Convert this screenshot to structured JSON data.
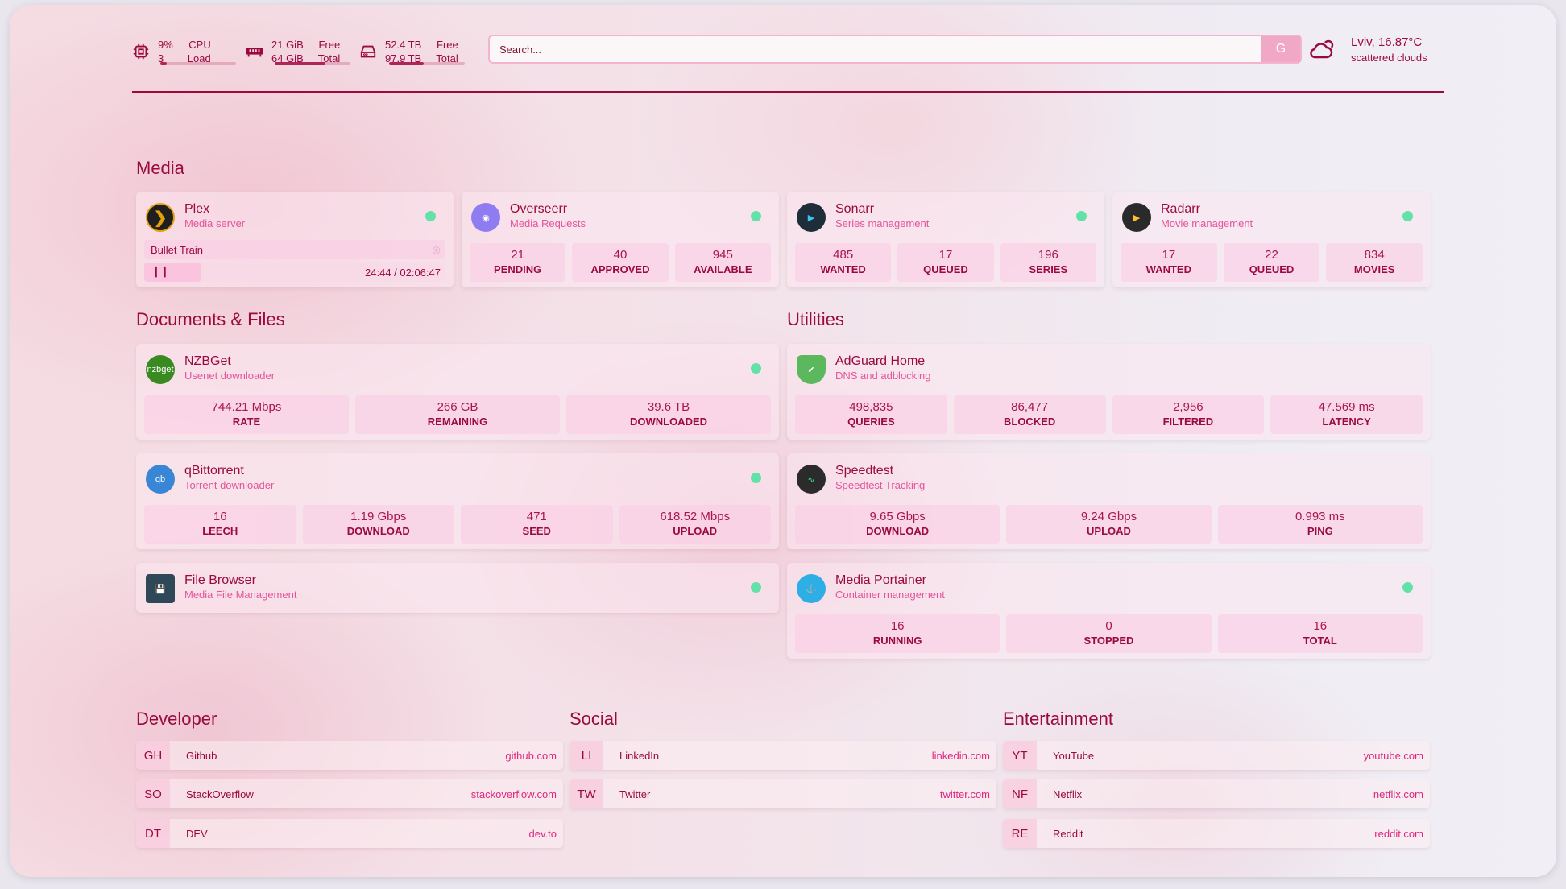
{
  "header": {
    "cpu": {
      "icon": "cpu-icon",
      "value": "9%",
      "value2": "3",
      "label": "CPU",
      "label2": "Load",
      "percent": 9
    },
    "memory": {
      "icon": "memory-icon",
      "value": "21 GiB",
      "value2": "64 GiB",
      "label": "Free",
      "label2": "Total",
      "percent": 67
    },
    "disk": {
      "icon": "disk-icon",
      "value": "52.4 TB",
      "value2": "97.9 TB",
      "label": "Free",
      "label2": "Total",
      "percent": 46
    },
    "search": {
      "placeholder": "Search...",
      "button": "G"
    },
    "weather": {
      "icon": "cloud-icon",
      "temp": "Lviv, 16.87°C",
      "desc": "scattered clouds"
    }
  },
  "groups": {
    "media": "Media",
    "docs": "Documents & Files",
    "utilities": "Utilities",
    "developer": "Developer",
    "social": "Social",
    "entertainment": "Entertainment"
  },
  "plex": {
    "name": "Plex",
    "desc": "Media server",
    "title": "Bullet Train",
    "time": "24:44 / 02:06:47",
    "progress": 19
  },
  "services": [
    {
      "id": "overseerr",
      "name": "Overseerr",
      "desc": "Media Requests",
      "icon": "overseerr-icon",
      "color": "#8f7cf0",
      "status": true,
      "stats": [
        [
          "21",
          "PENDING"
        ],
        [
          "40",
          "APPROVED"
        ],
        [
          "945",
          "AVAILABLE"
        ]
      ]
    },
    {
      "id": "sonarr",
      "name": "Sonarr",
      "desc": "Series management",
      "icon": "sonarr-icon",
      "color": "#1f2d3a",
      "status": true,
      "stats": [
        [
          "485",
          "WANTED"
        ],
        [
          "17",
          "QUEUED"
        ],
        [
          "196",
          "SERIES"
        ]
      ]
    },
    {
      "id": "radarr",
      "name": "Radarr",
      "desc": "Movie management",
      "icon": "radarr-icon",
      "color": "#2a2a2a",
      "status": true,
      "stats": [
        [
          "17",
          "WANTED"
        ],
        [
          "22",
          "QUEUED"
        ],
        [
          "834",
          "MOVIES"
        ]
      ]
    },
    {
      "id": "nzbget",
      "name": "NZBGet",
      "desc": "Usenet downloader",
      "icon": "nzbget-icon",
      "color": "#3a8a22",
      "logoText": "nzbget",
      "status": true,
      "stats": [
        [
          "744.21 Mbps",
          "RATE"
        ],
        [
          "266 GB",
          "REMAINING"
        ],
        [
          "39.6 TB",
          "DOWNLOADED"
        ]
      ]
    },
    {
      "id": "qbittorrent",
      "name": "qBittorrent",
      "desc": "Torrent downloader",
      "icon": "qbittorrent-icon",
      "color": "#3a86d6",
      "logoText": "qb",
      "status": true,
      "stats": [
        [
          "16",
          "LEECH"
        ],
        [
          "1.19 Gbps",
          "DOWNLOAD"
        ],
        [
          "471",
          "SEED"
        ],
        [
          "618.52 Mbps",
          "UPLOAD"
        ]
      ]
    },
    {
      "id": "filebrowser",
      "name": "File Browser",
      "desc": "Media File Management",
      "icon": "filebrowser-icon",
      "color": "#2f4858",
      "status": true,
      "stats": []
    },
    {
      "id": "adguard",
      "name": "AdGuard Home",
      "desc": "DNS and adblocking",
      "icon": "adguard-shield-icon",
      "color": "#5cb85c",
      "status": false,
      "stats": [
        [
          "498,835",
          "QUERIES"
        ],
        [
          "86,477",
          "BLOCKED"
        ],
        [
          "2,956",
          "FILTERED"
        ],
        [
          "47.569 ms",
          "LATENCY"
        ]
      ]
    },
    {
      "id": "speedtest",
      "name": "Speedtest",
      "desc": "Speedtest Tracking",
      "icon": "speedtest-icon",
      "color": "#2b2b2b",
      "status": false,
      "stats": [
        [
          "9.65 Gbps",
          "DOWNLOAD"
        ],
        [
          "9.24 Gbps",
          "UPLOAD"
        ],
        [
          "0.993 ms",
          "PING"
        ]
      ]
    },
    {
      "id": "portainer",
      "name": "Media Portainer",
      "desc": "Container management",
      "icon": "portainer-icon",
      "color": "#2dafe6",
      "status": true,
      "stats": [
        [
          "16",
          "RUNNING"
        ],
        [
          "0",
          "STOPPED"
        ],
        [
          "16",
          "TOTAL"
        ]
      ]
    }
  ],
  "bookmarks": {
    "developer": [
      {
        "abbr": "GH",
        "name": "Github",
        "url": "github.com"
      },
      {
        "abbr": "SO",
        "name": "StackOverflow",
        "url": "stackoverflow.com"
      },
      {
        "abbr": "DT",
        "name": "DEV",
        "url": "dev.to"
      }
    ],
    "social": [
      {
        "abbr": "LI",
        "name": "LinkedIn",
        "url": "linkedin.com"
      },
      {
        "abbr": "TW",
        "name": "Twitter",
        "url": "twitter.com"
      }
    ],
    "entertainment": [
      {
        "abbr": "YT",
        "name": "YouTube",
        "url": "youtube.com"
      },
      {
        "abbr": "NF",
        "name": "Netflix",
        "url": "netflix.com"
      },
      {
        "abbr": "RE",
        "name": "Reddit",
        "url": "reddit.com"
      }
    ]
  }
}
